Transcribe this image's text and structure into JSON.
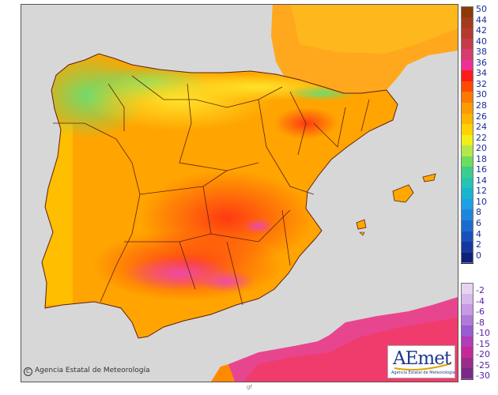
{
  "copyright": {
    "symbol": "C",
    "text": "Agencia Estatal de Meteorología"
  },
  "logo": {
    "wordmark": "AEmet",
    "subtitle": "Agencia Estatal de Meteorología"
  },
  "footer_mark": "gf",
  "colors": {
    "sea": "#d7d7d7",
    "land_background": "#ffa400",
    "borders": "#5e1f10",
    "africa": "#e8458f"
  },
  "legend": {
    "positive": [
      {
        "label": "50",
        "color": "#8c3a06"
      },
      {
        "label": "44",
        "color": "#a33a1a"
      },
      {
        "label": "42",
        "color": "#b53a2c"
      },
      {
        "label": "40",
        "color": "#c43c48"
      },
      {
        "label": "38",
        "color": "#d63c6c"
      },
      {
        "label": "36",
        "color": "#ee3096"
      },
      {
        "label": "34",
        "color": "#ff1a1a"
      },
      {
        "label": "32",
        "color": "#ff4a00"
      },
      {
        "label": "30",
        "color": "#ff7800"
      },
      {
        "label": "28",
        "color": "#ff9a00"
      },
      {
        "label": "26",
        "color": "#ffb400"
      },
      {
        "label": "24",
        "color": "#ffd200"
      },
      {
        "label": "22",
        "color": "#f0f014"
      },
      {
        "label": "20",
        "color": "#b4e84a"
      },
      {
        "label": "18",
        "color": "#6edc5c"
      },
      {
        "label": "16",
        "color": "#3ccd8c"
      },
      {
        "label": "14",
        "color": "#24c4b4"
      },
      {
        "label": "12",
        "color": "#18b4d0"
      },
      {
        "label": "10",
        "color": "#1ea0e6"
      },
      {
        "label": "8",
        "color": "#1c86dc"
      },
      {
        "label": "6",
        "color": "#1a6ad0"
      },
      {
        "label": "4",
        "color": "#1850bc"
      },
      {
        "label": "2",
        "color": "#16389e"
      },
      {
        "label": "0",
        "color": "#0e2078"
      }
    ],
    "negative": [
      {
        "label": "-2",
        "color": "#e8d4f2"
      },
      {
        "label": "-4",
        "color": "#d8b8ec"
      },
      {
        "label": "-6",
        "color": "#c69ae4"
      },
      {
        "label": "-8",
        "color": "#b07ada"
      },
      {
        "label": "-10",
        "color": "#9a5ad2"
      },
      {
        "label": "-15",
        "color": "#b33ab8"
      },
      {
        "label": "-20",
        "color": "#c4289a"
      },
      {
        "label": "-25",
        "color": "#9c2c8a"
      },
      {
        "label": "-30",
        "color": "#7a2a86"
      }
    ]
  }
}
